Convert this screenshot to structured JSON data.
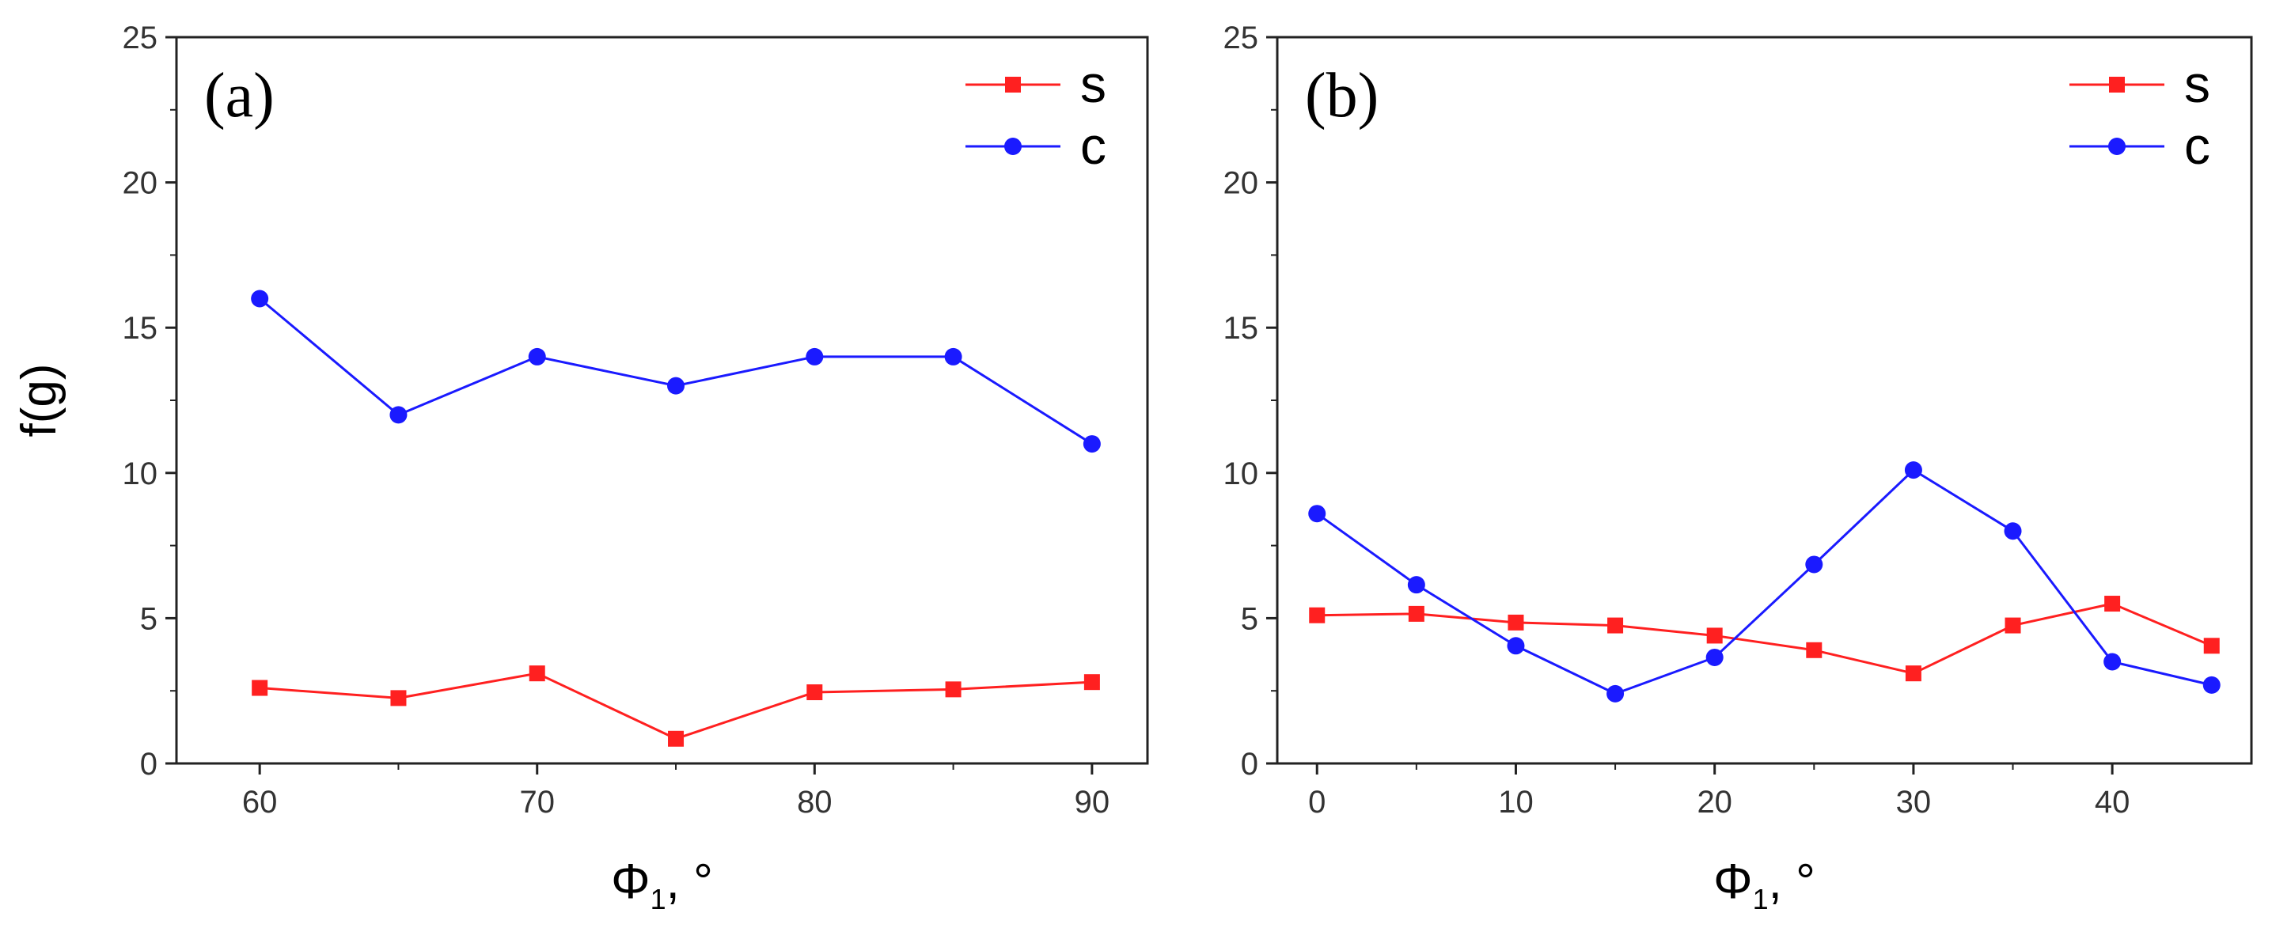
{
  "chart_data": [
    {
      "type": "line",
      "panel_label": "(a)",
      "ylabel": "f(g)",
      "xlabel": {
        "symbol": "Φ",
        "subscript": "1",
        "unit": ", °"
      },
      "xlim": [
        57,
        92
      ],
      "ylim": [
        0,
        25
      ],
      "xticks": [
        60,
        70,
        80,
        90
      ],
      "yticks": [
        0,
        5,
        10,
        15,
        20,
        25
      ],
      "legend": "top-right",
      "series": [
        {
          "name": "s",
          "color": "#ff2020",
          "marker": "square",
          "x": [
            60,
            65,
            70,
            75,
            80,
            85,
            90
          ],
          "y": [
            2.6,
            2.25,
            3.1,
            0.85,
            2.45,
            2.55,
            2.8
          ]
        },
        {
          "name": "c",
          "color": "#1a1aff",
          "marker": "circle",
          "x": [
            60,
            65,
            70,
            75,
            80,
            85,
            90
          ],
          "y": [
            16,
            12,
            14,
            13,
            14,
            14,
            11
          ]
        }
      ]
    },
    {
      "type": "line",
      "panel_label": "(b)",
      "ylabel": "",
      "xlabel": {
        "symbol": "Φ",
        "subscript": "1",
        "unit": ", °"
      },
      "xlim": [
        -2,
        47
      ],
      "ylim": [
        0,
        25
      ],
      "xticks": [
        0,
        10,
        20,
        30,
        40
      ],
      "yticks": [
        0,
        5,
        10,
        15,
        20,
        25
      ],
      "legend": "top-right",
      "series": [
        {
          "name": "s",
          "color": "#ff2020",
          "marker": "square",
          "x": [
            0,
            5,
            10,
            15,
            20,
            25,
            30,
            35,
            40,
            45
          ],
          "y": [
            5.1,
            5.15,
            4.85,
            4.75,
            4.4,
            3.9,
            3.1,
            4.75,
            5.5,
            4.05
          ]
        },
        {
          "name": "c",
          "color": "#1a1aff",
          "marker": "circle",
          "x": [
            0,
            5,
            10,
            15,
            20,
            25,
            30,
            35,
            40,
            45
          ],
          "y": [
            8.6,
            6.15,
            4.05,
            2.4,
            3.65,
            6.85,
            10.1,
            8.0,
            3.5,
            2.7
          ]
        }
      ]
    }
  ]
}
